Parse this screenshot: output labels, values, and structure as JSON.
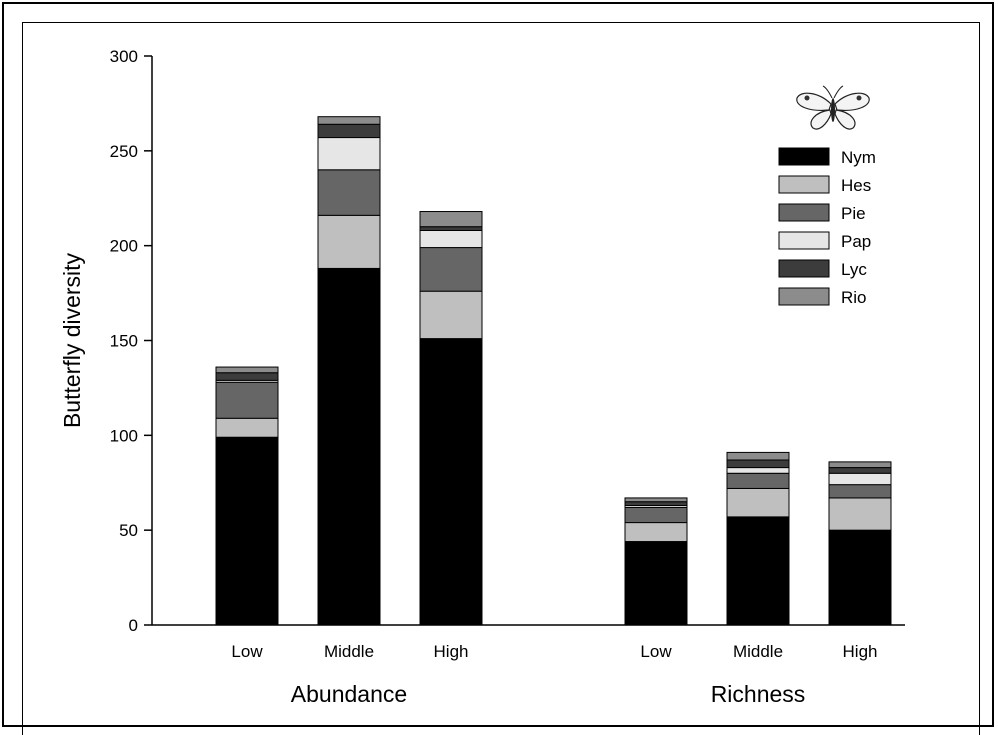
{
  "chart_data": {
    "type": "bar",
    "stacked": true,
    "ylabel": "Butterfly diversity",
    "ylim": [
      0,
      300
    ],
    "yticks": [
      0,
      50,
      100,
      150,
      200,
      250,
      300
    ],
    "groups": [
      {
        "label": "Abundance",
        "categories": [
          "Low",
          "Middle",
          "High"
        ]
      },
      {
        "label": "Richness",
        "categories": [
          "Low",
          "Middle",
          "High"
        ]
      }
    ],
    "series": [
      {
        "name": "Nym",
        "color": "#000000",
        "values": [
          99,
          188,
          151,
          44,
          57,
          50
        ]
      },
      {
        "name": "Hes",
        "color": "#bfbfbf",
        "values": [
          10,
          28,
          25,
          10,
          15,
          17
        ]
      },
      {
        "name": "Pie",
        "color": "#666666",
        "values": [
          19,
          24,
          23,
          8,
          8,
          7
        ]
      },
      {
        "name": "Pap",
        "color": "#e6e6e6",
        "values": [
          1,
          17,
          9,
          1,
          3,
          6
        ]
      },
      {
        "name": "Lyc",
        "color": "#3c3c3c",
        "values": [
          4,
          7,
          2,
          2,
          4,
          3
        ]
      },
      {
        "name": "Rio",
        "color": "#8c8c8c",
        "values": [
          3,
          4,
          8,
          2,
          4,
          3
        ]
      }
    ],
    "legend_position": "top-right",
    "legend_icon": "butterfly-icon",
    "grid": false
  }
}
